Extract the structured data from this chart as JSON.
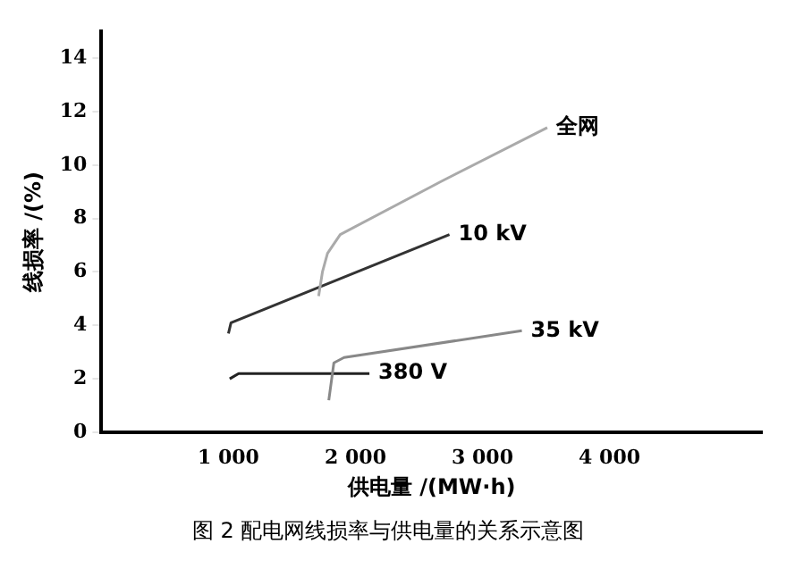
{
  "chart_data": {
    "type": "line",
    "title": "图 2 配电网线损率与供电量的关系示意图",
    "xlabel": "供电量 /(MW·h)",
    "ylabel": "线损率 /(%)",
    "xlim": [
      0,
      5200
    ],
    "xticks": [
      {
        "value": 1000,
        "label": "1 000"
      },
      {
        "value": 2000,
        "label": "2 000"
      },
      {
        "value": 3000,
        "label": "3 000"
      },
      {
        "value": 4000,
        "label": "4 000"
      }
    ],
    "ylim": [
      0,
      15
    ],
    "yticks": [
      0,
      2,
      4,
      6,
      8,
      10,
      12,
      14
    ],
    "grid": false,
    "legend": false,
    "series": [
      {
        "name": "全网",
        "color": "#aaaaaa",
        "x": [
          1710,
          1740,
          1780,
          1880,
          2680,
          3510
        ],
        "values": [
          5.1,
          6.0,
          6.7,
          7.4,
          9.4,
          11.4
        ]
      },
      {
        "name": "10 kV",
        "color": "#333333",
        "x": [
          1000,
          1020,
          2740
        ],
        "values": [
          3.7,
          4.1,
          7.4
        ]
      },
      {
        "name": "35 kV",
        "color": "#888888",
        "x": [
          1790,
          1830,
          1910,
          3310
        ],
        "values": [
          1.2,
          2.6,
          2.8,
          3.8
        ]
      },
      {
        "name": "380 V",
        "color": "#222222",
        "x": [
          1010,
          1080,
          2110
        ],
        "values": [
          2.0,
          2.2,
          2.2
        ]
      }
    ]
  }
}
